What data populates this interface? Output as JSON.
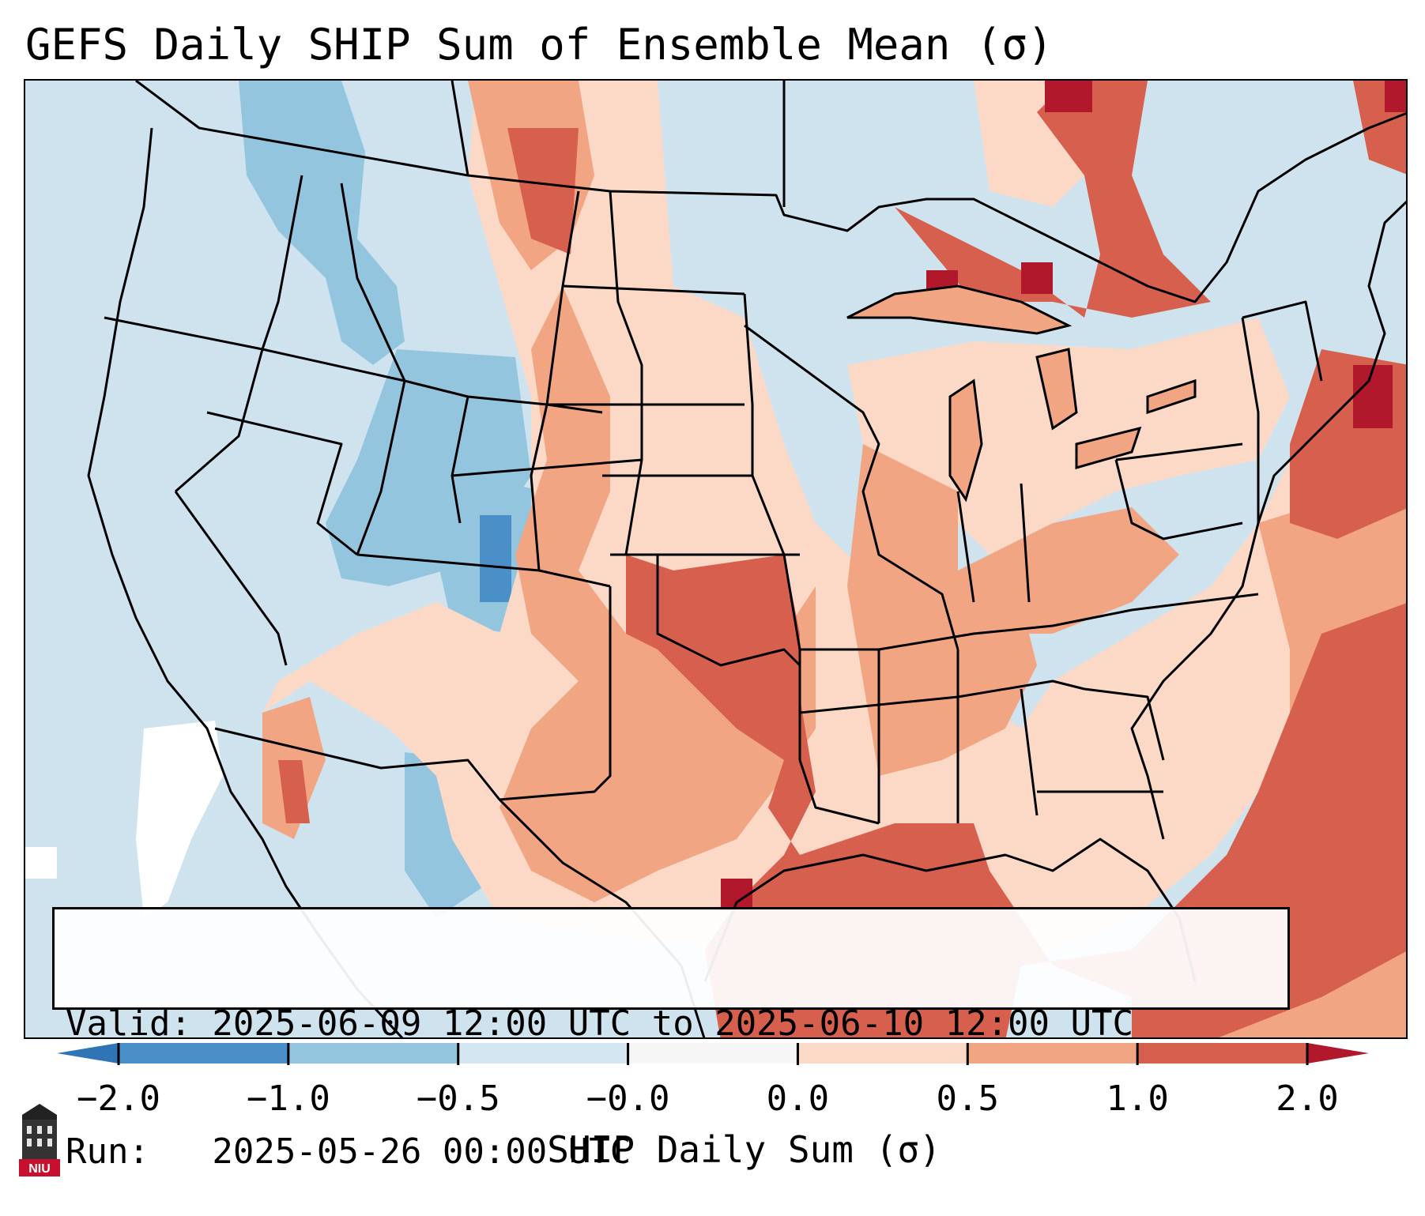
{
  "title": "GEFS Daily SHIP Sum of Ensemble Mean (σ)",
  "info": {
    "valid_line": "Valid: 2025-06-09 12:00 UTC to 2025-06-10 12:00 UTC",
    "run_line": "Run:   2025-05-26 00:00 UTC"
  },
  "colorbar": {
    "label": "SHIP Daily Sum (σ)",
    "ticks": [
      "−2.0",
      "−1.0",
      "−0.5",
      "−0.0",
      "0.0",
      "0.5",
      "1.0",
      "2.0"
    ],
    "colors": [
      "#4a8fc7",
      "#94c5df",
      "#d2e5f0",
      "#f6f6f6",
      "#fbd9c6",
      "#f2a582",
      "#d6604d"
    ],
    "extend_low_color": "#2f74b5",
    "extend_high_color": "#b2182b"
  },
  "map": {
    "background_color": "#cfe3ef",
    "region": "Contiguous United States"
  },
  "logo": {
    "text": "NIU",
    "icon": "niu-building-icon"
  }
}
